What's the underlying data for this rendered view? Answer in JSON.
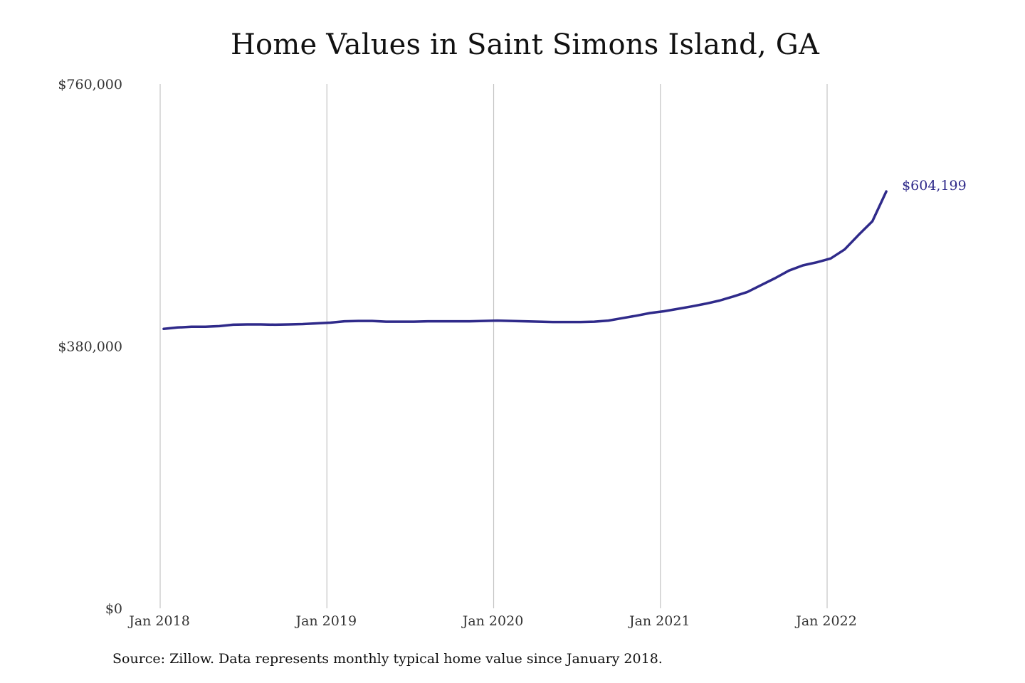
{
  "chart_data": {
    "type": "line",
    "title": "Home Values in Saint Simons Island, GA",
    "xlabel": "",
    "ylabel": "",
    "source": "Source: Zillow. Data represents monthly typical home value since January 2018.",
    "ylim": [
      0,
      760000
    ],
    "y_ticks": [
      {
        "value": 0,
        "label": "$0"
      },
      {
        "value": 380000,
        "label": "$380,000"
      },
      {
        "value": 760000,
        "label": "$760,000"
      }
    ],
    "x_range": [
      "2018-01",
      "2022-05"
    ],
    "x_ticks": [
      {
        "date": "2018-01",
        "label": "Jan 2018"
      },
      {
        "date": "2019-01",
        "label": "Jan 2019"
      },
      {
        "date": "2020-01",
        "label": "Jan 2020"
      },
      {
        "date": "2021-01",
        "label": "Jan 2021"
      },
      {
        "date": "2022-01",
        "label": "Jan 2022"
      }
    ],
    "grid": {
      "vertical": true,
      "horizontal": false
    },
    "colors": {
      "line": "#2f2a8a",
      "grid": "#c4c4c4"
    },
    "end_label": "$604,199",
    "series": [
      {
        "x": [
          "2018-01",
          "2018-02",
          "2018-03",
          "2018-04",
          "2018-05",
          "2018-06",
          "2018-07",
          "2018-08",
          "2018-09",
          "2018-10",
          "2018-11",
          "2018-12",
          "2019-01",
          "2019-02",
          "2019-03",
          "2019-04",
          "2019-05",
          "2019-06",
          "2019-07",
          "2019-08",
          "2019-09",
          "2019-10",
          "2019-11",
          "2019-12",
          "2020-01",
          "2020-02",
          "2020-03",
          "2020-04",
          "2020-05",
          "2020-06",
          "2020-07",
          "2020-08",
          "2020-09",
          "2020-10",
          "2020-11",
          "2020-12",
          "2021-01",
          "2021-02",
          "2021-03",
          "2021-04",
          "2021-05",
          "2021-06",
          "2021-07",
          "2021-08",
          "2021-09",
          "2021-10",
          "2021-11",
          "2021-12",
          "2022-01",
          "2022-02",
          "2022-03",
          "2022-04",
          "2022-05"
        ],
        "values": [
          405000,
          407000,
          408000,
          408000,
          409000,
          411000,
          411500,
          411500,
          411000,
          411500,
          412000,
          413000,
          414000,
          416000,
          416500,
          416500,
          415500,
          415500,
          415500,
          416000,
          416000,
          416000,
          416000,
          416500,
          417000,
          416500,
          416000,
          415500,
          415000,
          415000,
          415000,
          415500,
          417000,
          420500,
          424000,
          428000,
          430500,
          434000,
          437500,
          441500,
          446000,
          452000,
          458500,
          468500,
          478500,
          489500,
          497000,
          501500,
          507000,
          520000,
          541000,
          561000,
          604199
        ]
      }
    ]
  }
}
